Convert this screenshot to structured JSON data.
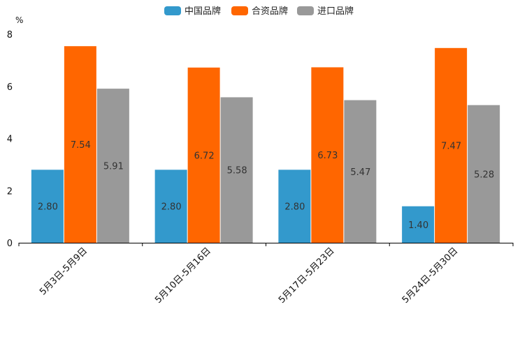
{
  "chart_data": {
    "type": "bar",
    "title": "",
    "ylabel": "%",
    "xlabel": "",
    "ylim": [
      0,
      8
    ],
    "yticks": [
      0,
      2,
      4,
      6,
      8
    ],
    "legend_position": "top-center",
    "categories": [
      "5月3日-5月9日",
      "5月10日-5月16日",
      "5月17日-5月23日",
      "5月24日-5月30日"
    ],
    "series": [
      {
        "name": "中国品牌",
        "color": "#3399cc",
        "values": [
          2.8,
          2.8,
          2.8,
          1.4
        ]
      },
      {
        "name": "合资品牌",
        "color": "#ff6600",
        "values": [
          7.54,
          6.72,
          6.73,
          7.47
        ]
      },
      {
        "name": "进口品牌",
        "color": "#999999",
        "values": [
          5.91,
          5.58,
          5.47,
          5.28
        ]
      }
    ],
    "value_format_decimals": 2
  }
}
